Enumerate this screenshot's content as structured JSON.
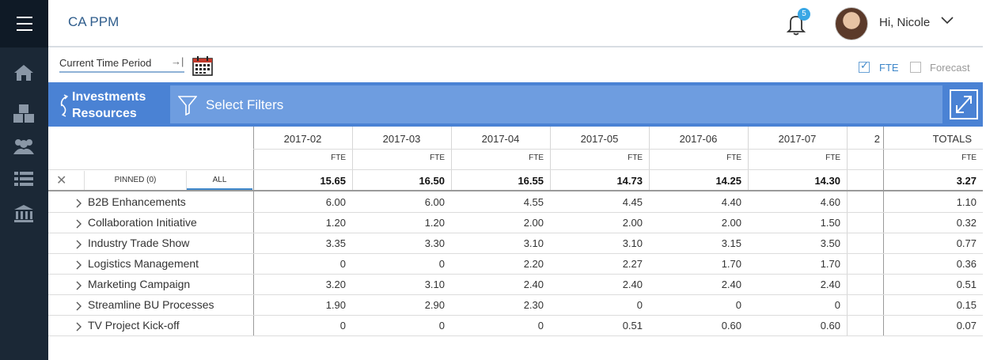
{
  "app": {
    "title": "CA PPM"
  },
  "header": {
    "notification_count": "5",
    "greeting": "Hi, Nicole"
  },
  "nav": {
    "icons": [
      "menu-icon",
      "home-icon",
      "cubes-icon",
      "users-icon",
      "list-icon",
      "bank-icon"
    ]
  },
  "toolbar": {
    "time_period": "Current Time Period",
    "time_arrow": "→|",
    "fte_label": "FTE",
    "fte_checked": true,
    "forecast_label": "Forecast",
    "forecast_checked": false
  },
  "filterbar": {
    "view_line1": "Investments",
    "view_line2": "Resources",
    "filter_label": "Select Filters"
  },
  "grid": {
    "tabs": {
      "pinned": "PINNED (0)",
      "all": "ALL"
    },
    "periods": [
      "2017-02",
      "2017-03",
      "2017-04",
      "2017-05",
      "2017-06",
      "2017-07",
      "2"
    ],
    "totals_header": "TOTALS",
    "unit": "FTE",
    "column_totals": [
      "15.65",
      "16.50",
      "16.55",
      "14.73",
      "14.25",
      "14.30"
    ],
    "grand_total": "3.27",
    "rows": [
      {
        "name": "B2B Enhancements",
        "values": [
          "6.00",
          "6.00",
          "4.55",
          "4.45",
          "4.40",
          "4.60"
        ],
        "total": "1.10"
      },
      {
        "name": "Collaboration Initiative",
        "values": [
          "1.20",
          "1.20",
          "2.00",
          "2.00",
          "2.00",
          "1.50"
        ],
        "total": "0.32"
      },
      {
        "name": "Industry Trade Show",
        "values": [
          "3.35",
          "3.30",
          "3.10",
          "3.10",
          "3.15",
          "3.50"
        ],
        "total": "0.77"
      },
      {
        "name": "Logistics Management",
        "values": [
          "0",
          "0",
          "2.20",
          "2.27",
          "1.70",
          "1.70"
        ],
        "total": "0.36"
      },
      {
        "name": "Marketing Campaign",
        "values": [
          "3.20",
          "3.10",
          "2.40",
          "2.40",
          "2.40",
          "2.40"
        ],
        "total": "0.51"
      },
      {
        "name": "Streamline BU Processes",
        "values": [
          "1.90",
          "2.90",
          "2.30",
          "0",
          "0",
          "0"
        ],
        "total": "0.15"
      },
      {
        "name": "TV Project Kick-off",
        "values": [
          "0",
          "0",
          "0",
          "0.51",
          "0.60",
          "0.60"
        ],
        "total": "0.07"
      }
    ]
  }
}
